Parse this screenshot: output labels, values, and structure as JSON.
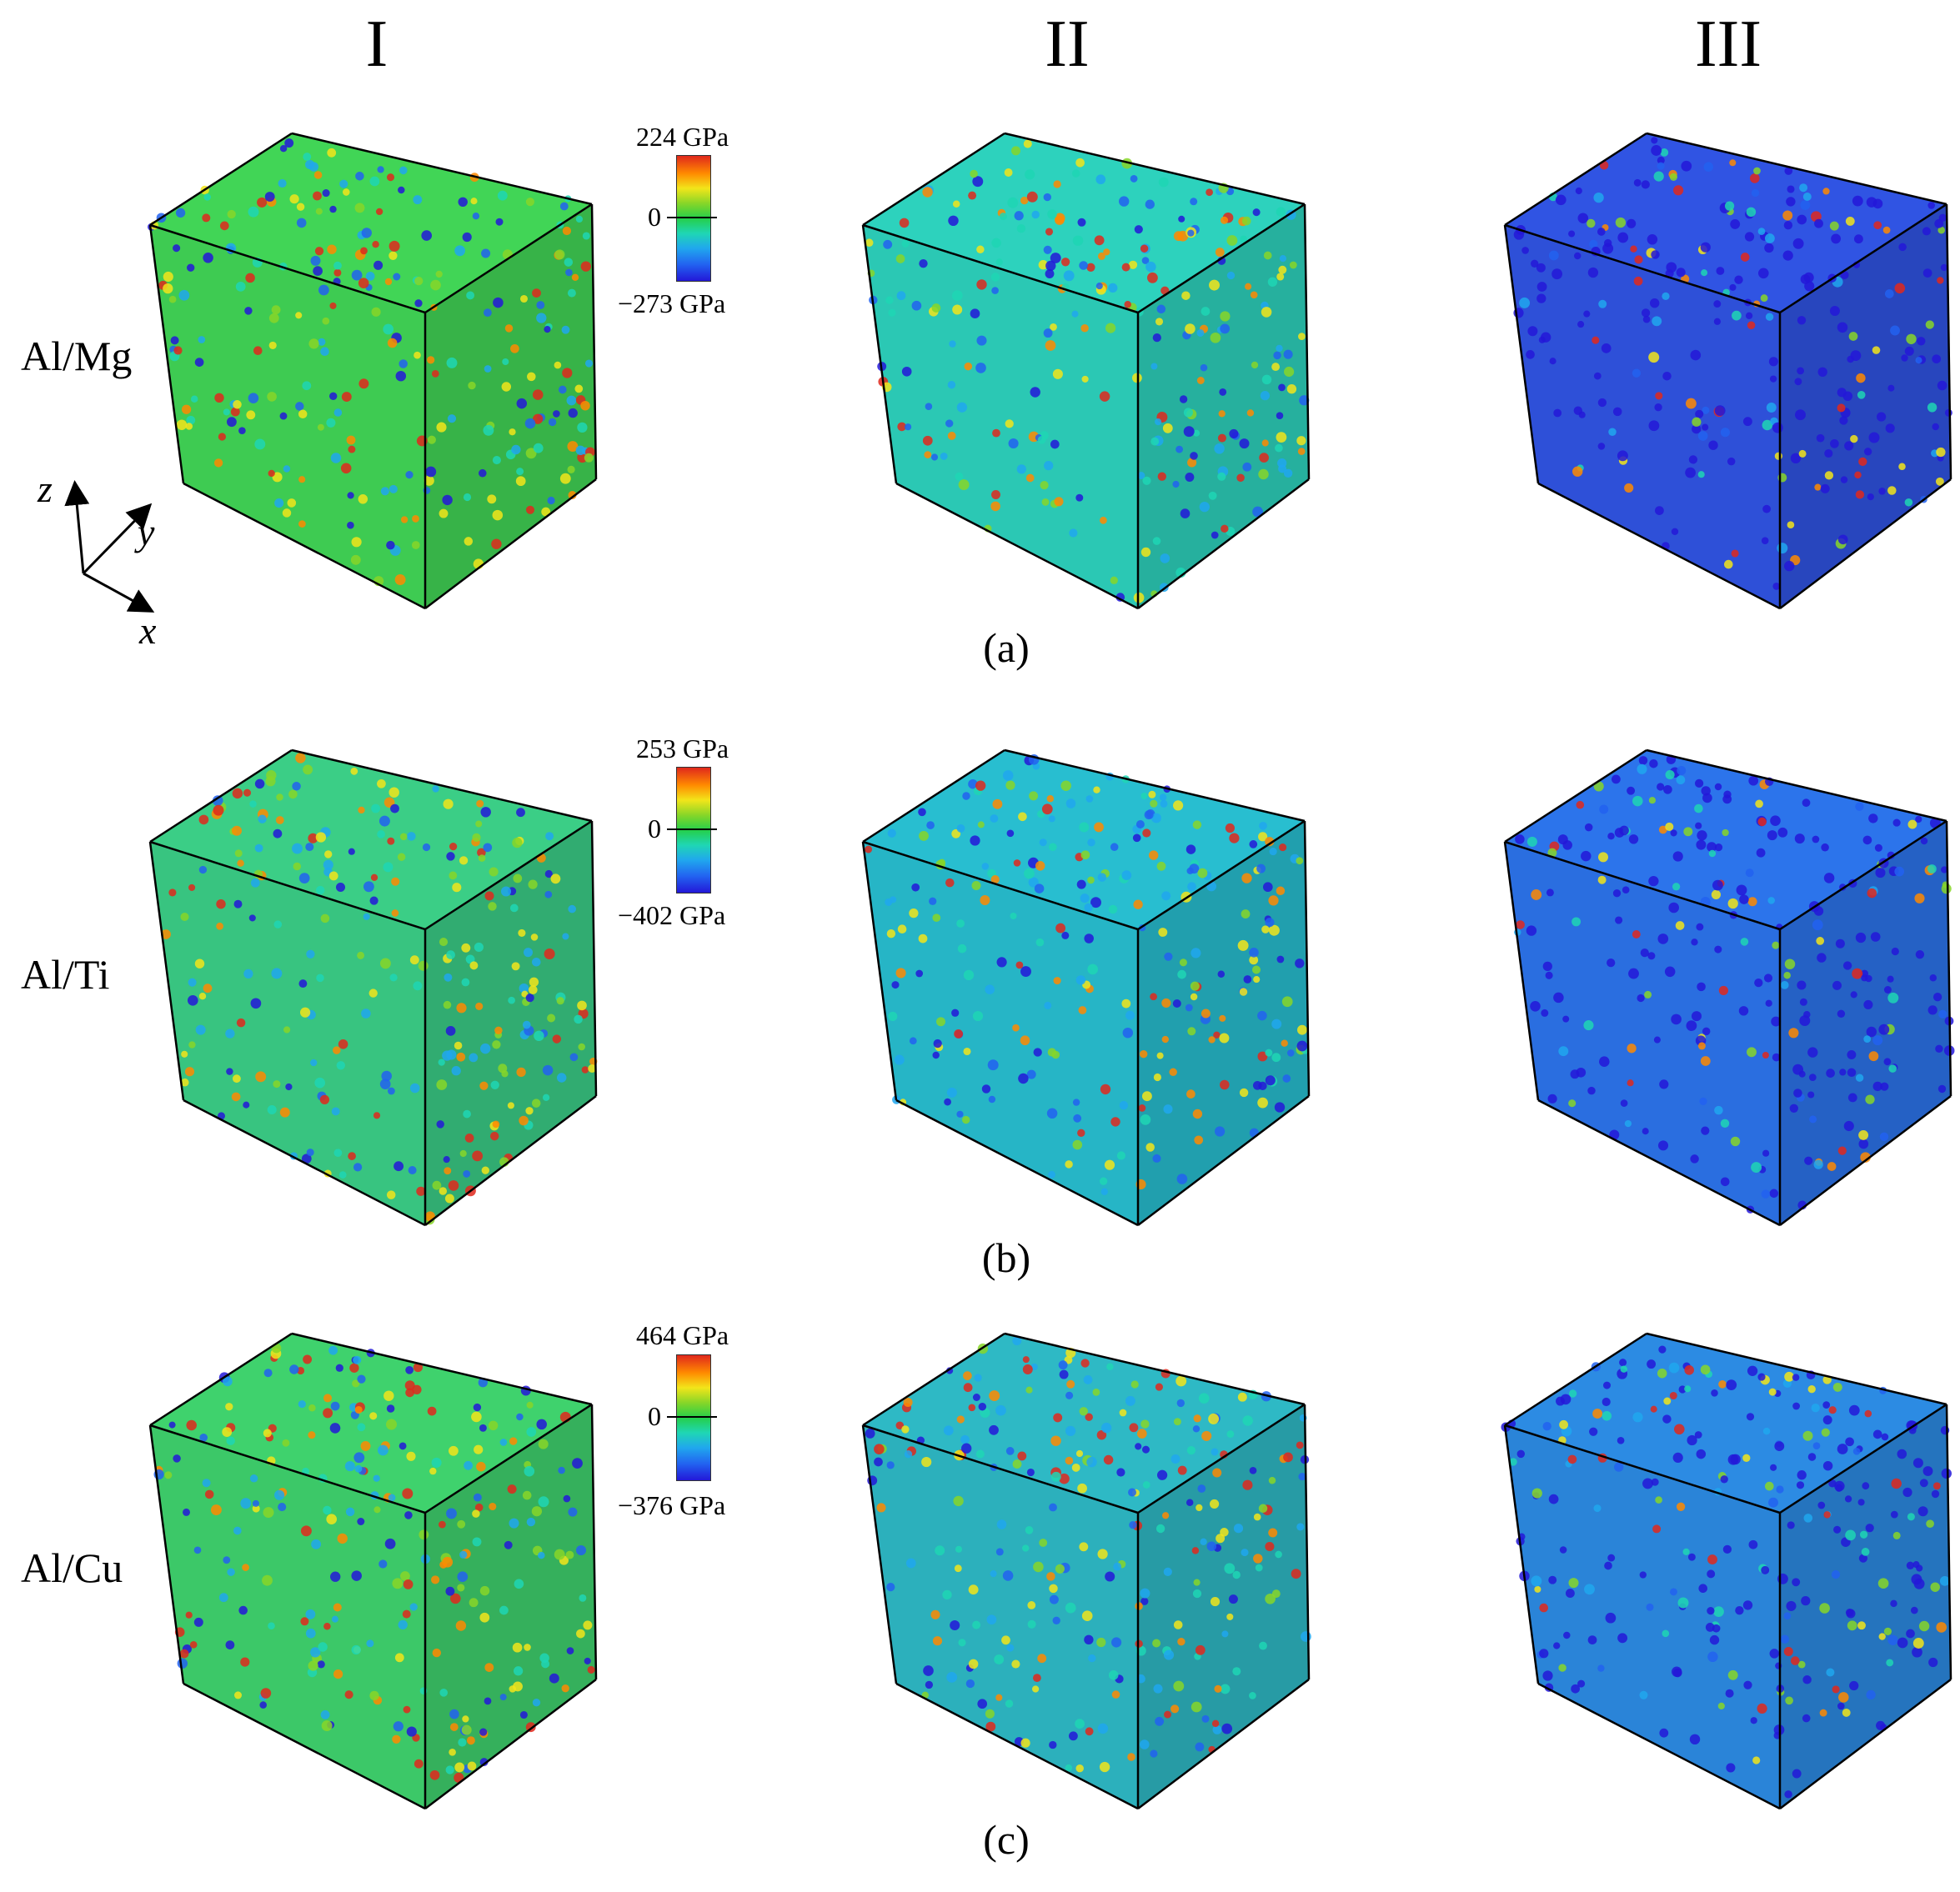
{
  "column_headers": [
    "I",
    "II",
    "III"
  ],
  "rows": [
    {
      "label": "Al/Mg",
      "panel": "(a)",
      "colorbar": {
        "max": "224 GPa",
        "zero": "0",
        "min": "−273 GPa"
      }
    },
    {
      "label": "Al/Ti",
      "panel": "(b)",
      "colorbar": {
        "max": "253 GPa",
        "zero": "0",
        "min": "−402 GPa"
      }
    },
    {
      "label": "Al/Cu",
      "panel": "(c)",
      "colorbar": {
        "max": "464 GPa",
        "zero": "0",
        "min": "−376 GPa"
      }
    }
  ],
  "axes": {
    "z": "z",
    "y": "y",
    "x": "x"
  },
  "cube_colors": {
    "0_0": "#3ecb52",
    "0_1": "#2bc8b4",
    "0_2": "#2e50d8",
    "1_0": "#38c480",
    "1_1": "#26b5c6",
    "1_2": "#2a6ee0",
    "2_0": "#3cc868",
    "2_1": "#2cb0bc",
    "2_2": "#2a84d8"
  }
}
